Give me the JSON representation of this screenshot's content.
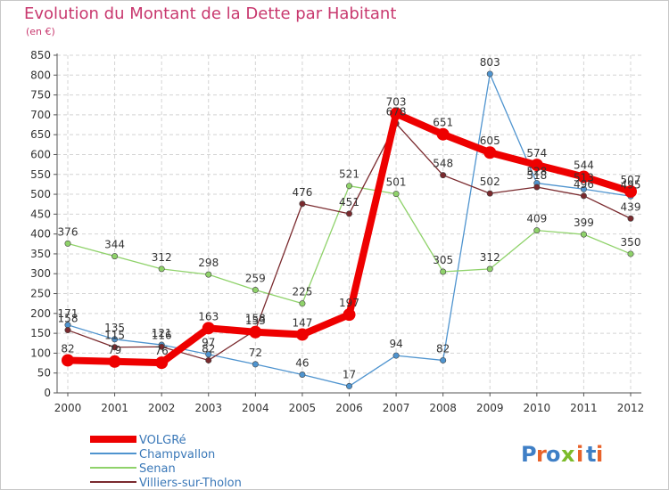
{
  "title": "Evolution du Montant de la Dette par Habitant",
  "subtitle": "(en €)",
  "brand": "Proxiti",
  "brand_letters": [
    "P",
    "r",
    "o",
    "x",
    "i",
    "t",
    "i"
  ],
  "brand_colors": [
    "#3f7fc6",
    "#e8632b",
    "#3f7fc6",
    "#7cbb2a",
    "#e8632b",
    "#3f7fc6",
    "#e8632b"
  ],
  "chart_data": {
    "type": "line",
    "categories": [
      "2000",
      "2001",
      "2002",
      "2003",
      "2004",
      "2005",
      "2006",
      "2007",
      "2008",
      "2009",
      "2010",
      "2011",
      "2012"
    ],
    "ylim": [
      0,
      850
    ],
    "yticks": [
      "0",
      "50",
      "100",
      "150",
      "200",
      "250",
      "300",
      "350",
      "400",
      "450",
      "500",
      "550",
      "600",
      "650",
      "700",
      "750",
      "800",
      "850"
    ],
    "grid": true,
    "legend_placement": "bottom-left",
    "series": [
      {
        "name": "VOLGRé",
        "color": "#ee0000",
        "values": [
          82,
          79,
          76,
          163,
          153,
          147,
          197,
          703,
          651,
          605,
          574,
          544,
          507
        ],
        "labels": [
          "82",
          "79",
          "76",
          "163",
          "153",
          "147",
          "197",
          "703",
          "651",
          "605",
          "574",
          "544",
          "507"
        ]
      },
      {
        "name": "Champvallon",
        "color": "#4f94cf",
        "values": [
          171,
          135,
          121,
          97,
          72,
          46,
          17,
          94,
          82,
          803,
          528,
          513,
          495
        ],
        "labels": [
          "171",
          "135",
          "121",
          "97",
          "72",
          "46",
          "17",
          "94",
          "82",
          "803",
          "528",
          "513",
          "495"
        ]
      },
      {
        "name": "Senan",
        "color": "#8fd26a",
        "values": [
          376,
          344,
          312,
          298,
          259,
          225,
          521,
          501,
          305,
          312,
          409,
          399,
          350
        ],
        "labels": [
          "376",
          "344",
          "312",
          "298",
          "259",
          "225",
          "521",
          "501",
          "305",
          "312",
          "409",
          "399",
          "350"
        ]
      },
      {
        "name": "Villiers-sur-Tholon",
        "color": "#7a2a2e",
        "values": [
          158,
          115,
          116,
          82,
          158,
          476,
          451,
          678,
          548,
          502,
          518,
          496,
          439
        ],
        "labels": [
          "158",
          "115",
          "116",
          "82",
          "158",
          "476",
          "451",
          "678",
          "548",
          "502",
          "518",
          "496",
          "439"
        ]
      }
    ]
  }
}
